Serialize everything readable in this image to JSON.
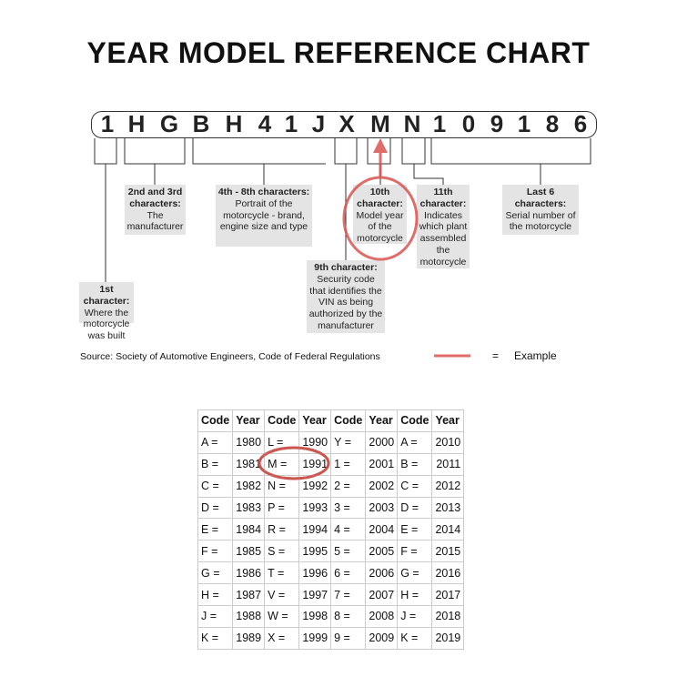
{
  "title": "YEAR MODEL REFERENCE CHART",
  "vin": [
    "1",
    "H",
    "G",
    "B",
    "H",
    "4",
    "1",
    "J",
    "X",
    "M",
    "N",
    "1",
    "0",
    "9",
    "1",
    "8",
    "6"
  ],
  "labels": [
    {
      "head": "1st character:",
      "body": "Where the motorcycle was built"
    },
    {
      "head": "2nd and 3rd characters:",
      "body": "The manufacturer"
    },
    {
      "head": "4th - 8th characters:",
      "body": "Portrait of the motorcycle - brand, engine size and type"
    },
    {
      "head": "9th character:",
      "body": "Security code that identifies the VIN as being authorized by the manufacturer"
    },
    {
      "head": "10th character:",
      "body": "Model year of the motorcycle"
    },
    {
      "head": "11th character:",
      "body": "Indicates which plant assembled the motorcycle"
    },
    {
      "head": "Last 6 characters:",
      "body": "Serial number of the motorcycle"
    }
  ],
  "source": "Source:  Society of Automotive Engineers, Code of Federal Regulations",
  "legend": {
    "equals": "=",
    "label": "Example",
    "color": "#d9534f"
  },
  "table": {
    "headers": [
      "Code",
      "Year",
      "Code",
      "Year",
      "Code",
      "Year",
      "Code",
      "Year"
    ],
    "rows": [
      [
        "A =",
        "1980",
        "L =",
        "1990",
        "Y =",
        "2000",
        "A =",
        "2010"
      ],
      [
        "B =",
        "1981",
        "M =",
        "1991",
        "1 =",
        "2001",
        "B =",
        "2011"
      ],
      [
        "C =",
        "1982",
        "N =",
        "1992",
        "2 =",
        "2002",
        "C =",
        "2012"
      ],
      [
        "D =",
        "1983",
        "P =",
        "1993",
        "3 =",
        "2003",
        "D =",
        "2013"
      ],
      [
        "E =",
        "1984",
        "R =",
        "1994",
        "4 =",
        "2004",
        "E =",
        "2014"
      ],
      [
        "F =",
        "1985",
        "S =",
        "1995",
        "5 =",
        "2005",
        "F =",
        "2015"
      ],
      [
        "G =",
        "1986",
        "T =",
        "1996",
        "6 =",
        "2006",
        "G =",
        "2016"
      ],
      [
        "H =",
        "1987",
        "V =",
        "1997",
        "7 =",
        "2007",
        "H =",
        "2017"
      ],
      [
        "J =",
        "1988",
        "W =",
        "1998",
        "8 =",
        "2008",
        "J =",
        "2018"
      ],
      [
        "K =",
        "1989",
        "X =",
        "1999",
        "9 =",
        "2009",
        "K =",
        "2019"
      ]
    ]
  }
}
